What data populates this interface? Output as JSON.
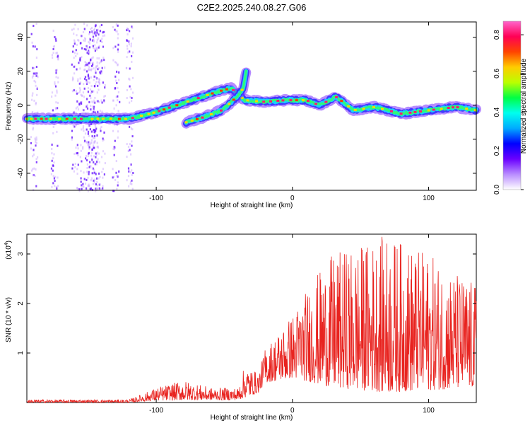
{
  "title": "C2E2.2025.240.08.27.G06",
  "colors": {
    "snr_line": "#e8231f",
    "background": "#ffffff",
    "axis": "#000000"
  },
  "chart_data": [
    {
      "type": "heatmap",
      "name": "spectrogram",
      "xlabel": "Height of straight line (km)",
      "ylabel": "Frequency (Hz)",
      "xlim": [
        -195,
        135
      ],
      "ylim": [
        -50,
        49
      ],
      "x_ticks": [
        -100,
        0,
        100
      ],
      "y_ticks": [
        -40,
        -20,
        0,
        20,
        40
      ],
      "colorbar": {
        "label": "Normalized spectral amplitude",
        "range": [
          0,
          0.87
        ],
        "ticks": [
          "0.0",
          "0.2",
          "0.4",
          "0.6",
          "0.8"
        ],
        "colormap": [
          "#ffffff",
          "#b98cff",
          "#6a00ff",
          "#0000ff",
          "#00aaff",
          "#00ffee",
          "#00ff44",
          "#bbff00",
          "#ffcc00",
          "#ff4400",
          "#ff0055",
          "#ff66cc"
        ]
      },
      "ridge_main": [
        {
          "x": -195,
          "y": -8
        },
        {
          "x": -160,
          "y": -8
        },
        {
          "x": -140,
          "y": -8
        },
        {
          "x": -120,
          "y": -8
        },
        {
          "x": -100,
          "y": -4
        },
        {
          "x": -85,
          "y": 0
        },
        {
          "x": -70,
          "y": 4
        },
        {
          "x": -55,
          "y": 8
        },
        {
          "x": -45,
          "y": 10
        },
        {
          "x": -35,
          "y": 3
        },
        {
          "x": -20,
          "y": 2
        },
        {
          "x": -5,
          "y": 3
        },
        {
          "x": 10,
          "y": 3
        },
        {
          "x": 20,
          "y": 0
        },
        {
          "x": 32,
          "y": 5
        },
        {
          "x": 45,
          "y": -3
        },
        {
          "x": 60,
          "y": -1
        },
        {
          "x": 80,
          "y": -5
        },
        {
          "x": 100,
          "y": -3
        },
        {
          "x": 120,
          "y": -1
        },
        {
          "x": 135,
          "y": -3
        }
      ],
      "ridge_secondary": [
        {
          "x": -78,
          "y": -10
        },
        {
          "x": -65,
          "y": -7
        },
        {
          "x": -52,
          "y": -3
        },
        {
          "x": -42,
          "y": 4
        },
        {
          "x": -36,
          "y": 10
        },
        {
          "x": -34,
          "y": 20
        }
      ],
      "broadband_columns_km": [
        -190,
        -175,
        -160,
        -150,
        -145,
        -130,
        -120
      ]
    },
    {
      "type": "line",
      "name": "snr",
      "xlabel": "Height of straight line (km)",
      "ylabel": "SNR (10 * v/v)",
      "scale_label": "(x10",
      "scale_exp": "4",
      "scale_close": ")",
      "xlim": [
        -195,
        135
      ],
      "ylim": [
        0,
        3.4
      ],
      "x_ticks": [
        -100,
        0,
        100
      ],
      "y_ticks": [
        1,
        2,
        3
      ],
      "envelope": [
        {
          "x": -195,
          "lo": 0.0,
          "hi": 0.06
        },
        {
          "x": -120,
          "lo": 0.0,
          "hi": 0.06
        },
        {
          "x": -100,
          "lo": 0.04,
          "hi": 0.3
        },
        {
          "x": -80,
          "lo": 0.05,
          "hi": 0.45
        },
        {
          "x": -60,
          "lo": 0.05,
          "hi": 0.3
        },
        {
          "x": -40,
          "lo": 0.05,
          "hi": 0.3
        },
        {
          "x": -35,
          "lo": 0.1,
          "hi": 0.75
        },
        {
          "x": -25,
          "lo": 0.2,
          "hi": 0.6
        },
        {
          "x": -20,
          "lo": 0.4,
          "hi": 1.1
        },
        {
          "x": 0,
          "lo": 0.5,
          "hi": 1.8
        },
        {
          "x": 15,
          "lo": 0.4,
          "hi": 2.5
        },
        {
          "x": 30,
          "lo": 0.3,
          "hi": 3.0
        },
        {
          "x": 70,
          "lo": 0.2,
          "hi": 3.4
        },
        {
          "x": 100,
          "lo": 0.25,
          "hi": 3.0
        },
        {
          "x": 135,
          "lo": 0.3,
          "hi": 2.4
        }
      ]
    }
  ]
}
